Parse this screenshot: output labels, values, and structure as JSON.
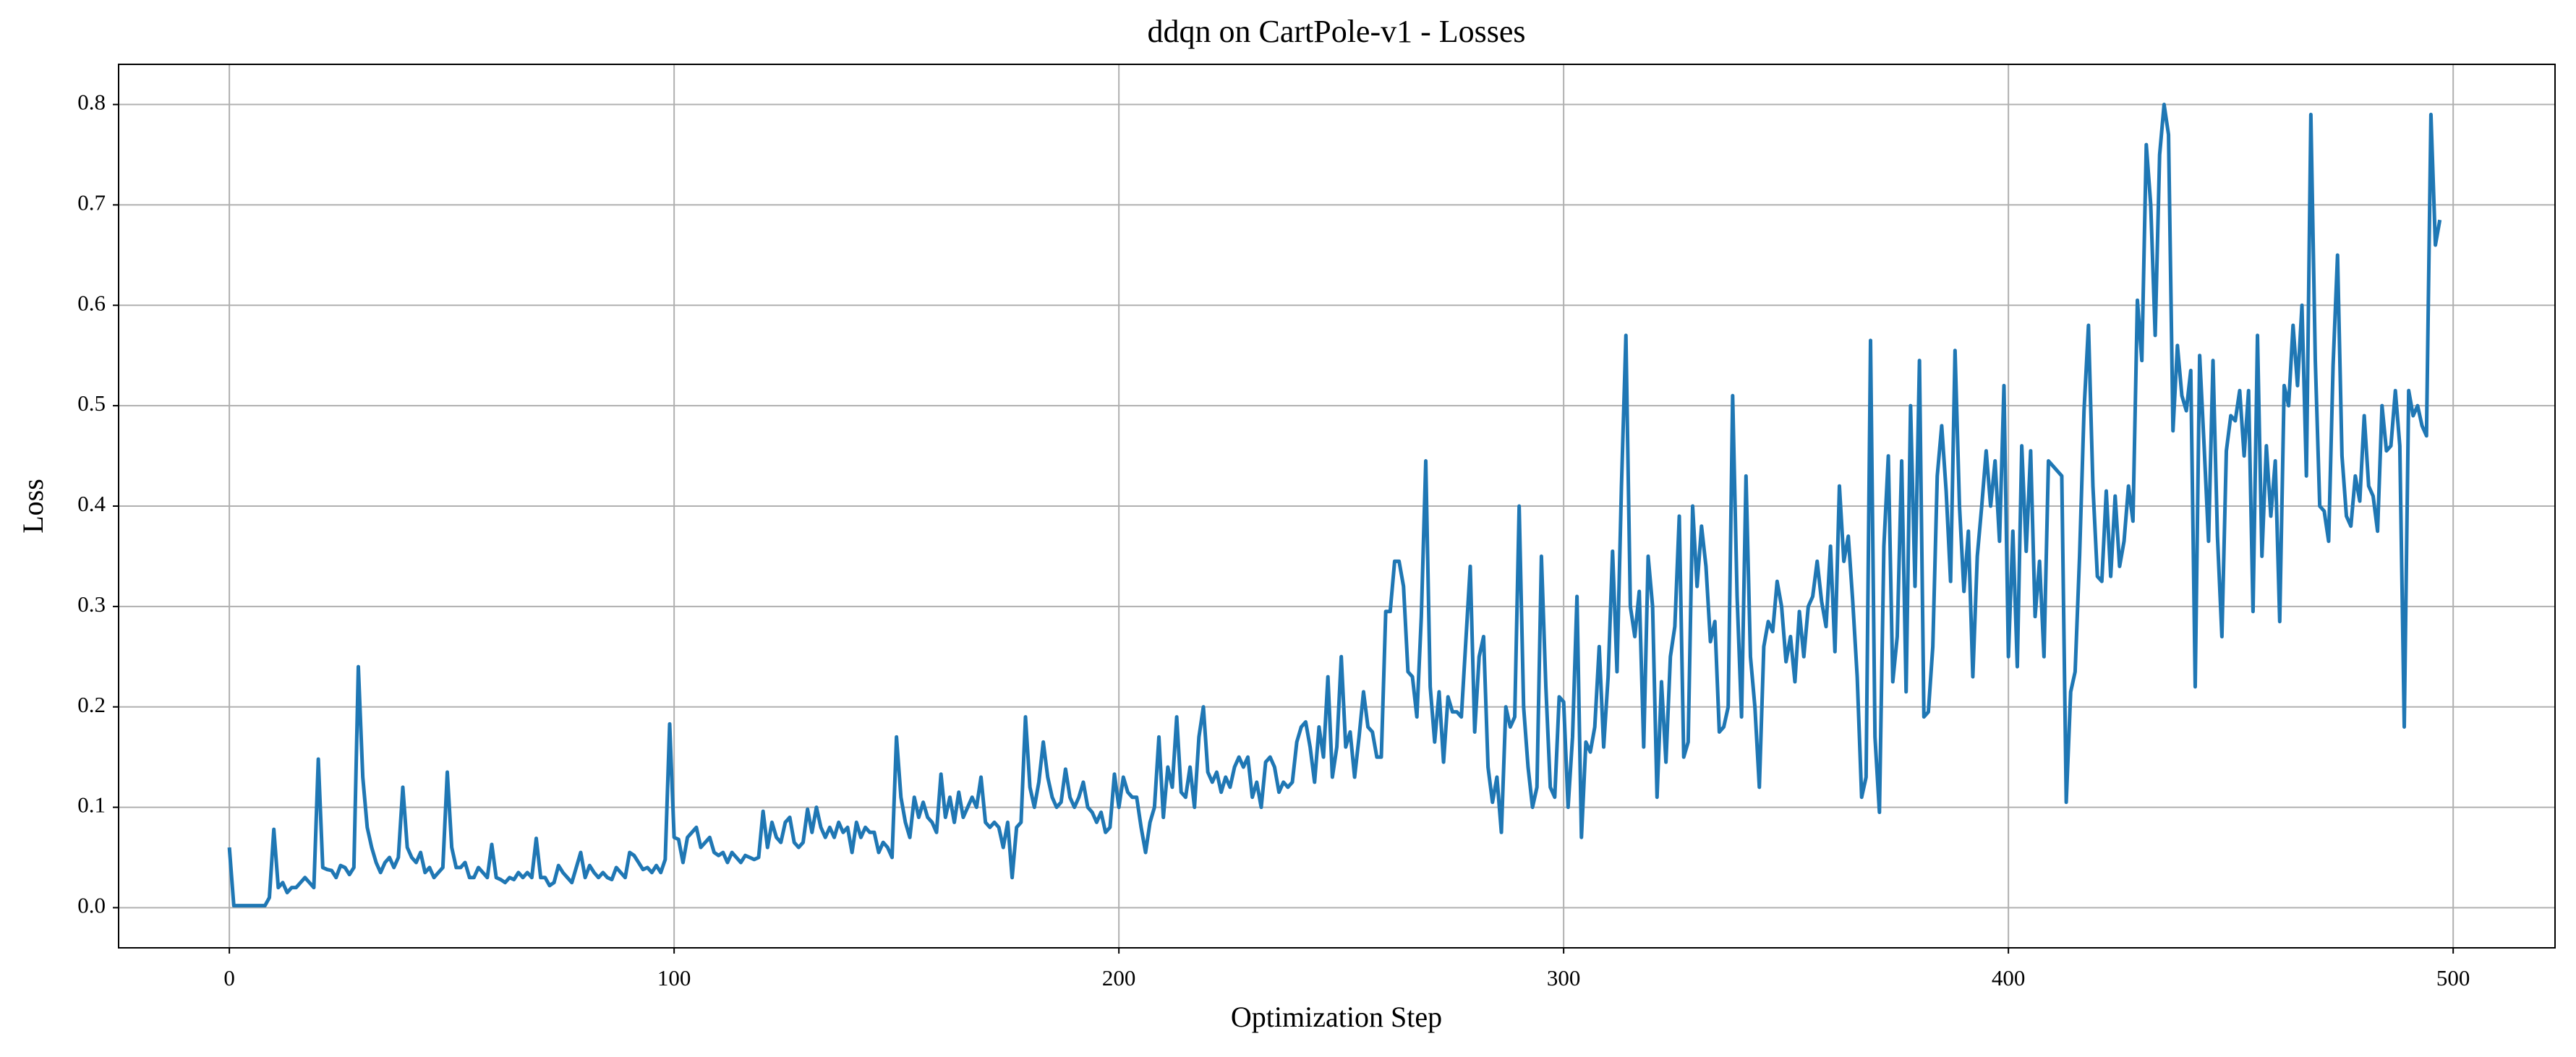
{
  "chart_data": {
    "type": "line",
    "title": "ddqn on CartPole-v1 - Losses",
    "x_label": "Optimization Step",
    "y_label": "Loss",
    "color": "#1f77b4",
    "grid": true,
    "xlim": [
      -24.9,
      522.9
    ],
    "xticks": [
      0,
      100,
      200,
      300,
      400,
      500
    ],
    "ylim": [
      -0.04,
      0.84
    ],
    "yticks": [
      {
        "value": 0,
        "label": "0.0"
      },
      0.1,
      0.2,
      0.3,
      0.4,
      0.5,
      0.6,
      0.7,
      0.8
    ],
    "x": [
      0,
      1,
      2,
      3,
      4,
      5,
      6,
      7,
      8,
      9,
      10,
      11,
      12,
      13,
      14,
      15,
      16,
      17,
      18,
      19,
      20,
      21,
      22,
      23,
      24,
      25,
      26,
      27,
      28,
      29,
      30,
      31,
      32,
      33,
      34,
      35,
      36,
      37,
      38,
      39,
      40,
      41,
      42,
      43,
      44,
      45,
      46,
      47,
      48,
      49,
      50,
      51,
      52,
      53,
      54,
      55,
      56,
      57,
      58,
      59,
      60,
      61,
      62,
      63,
      64,
      65,
      66,
      67,
      68,
      69,
      70,
      71,
      72,
      73,
      74,
      75,
      76,
      77,
      78,
      79,
      80,
      81,
      82,
      83,
      84,
      85,
      86,
      87,
      88,
      89,
      90,
      91,
      92,
      93,
      94,
      95,
      96,
      97,
      98,
      99,
      100,
      101,
      102,
      103,
      104,
      105,
      106,
      107,
      108,
      109,
      110,
      111,
      112,
      113,
      114,
      115,
      116,
      117,
      118,
      119,
      120,
      121,
      122,
      123,
      124,
      125,
      126,
      127,
      128,
      129,
      130,
      131,
      132,
      133,
      134,
      135,
      136,
      137,
      138,
      139,
      140,
      141,
      142,
      143,
      144,
      145,
      146,
      147,
      148,
      149,
      150,
      151,
      152,
      153,
      154,
      155,
      156,
      157,
      158,
      159,
      160,
      161,
      162,
      163,
      164,
      165,
      166,
      167,
      168,
      169,
      170,
      171,
      172,
      173,
      174,
      175,
      176,
      177,
      178,
      179,
      180,
      181,
      182,
      183,
      184,
      185,
      186,
      187,
      188,
      189,
      190,
      191,
      192,
      193,
      194,
      195,
      196,
      197,
      198,
      199,
      200,
      201,
      202,
      203,
      204,
      205,
      206,
      207,
      208,
      209,
      210,
      211,
      212,
      213,
      214,
      215,
      216,
      217,
      218,
      219,
      220,
      221,
      222,
      223,
      224,
      225,
      226,
      227,
      228,
      229,
      230,
      231,
      232,
      233,
      234,
      235,
      236,
      237,
      238,
      239,
      240,
      241,
      242,
      243,
      244,
      245,
      246,
      247,
      248,
      249,
      250,
      251,
      252,
      253,
      254,
      255,
      256,
      257,
      258,
      259,
      260,
      261,
      262,
      263,
      264,
      265,
      266,
      267,
      268,
      269,
      270,
      271,
      272,
      273,
      274,
      275,
      276,
      277,
      278,
      279,
      280,
      281,
      282,
      283,
      284,
      285,
      286,
      287,
      288,
      289,
      290,
      291,
      292,
      293,
      294,
      295,
      296,
      297,
      298,
      299,
      300,
      301,
      302,
      303,
      304,
      305,
      306,
      307,
      308,
      309,
      310,
      311,
      312,
      313,
      314,
      315,
      316,
      317,
      318,
      319,
      320,
      321,
      322,
      323,
      324,
      325,
      326,
      327,
      328,
      329,
      330,
      331,
      332,
      333,
      334,
      335,
      336,
      337,
      338,
      339,
      340,
      341,
      342,
      343,
      344,
      345,
      346,
      347,
      348,
      349,
      350,
      351,
      352,
      353,
      354,
      355,
      356,
      357,
      358,
      359,
      360,
      361,
      362,
      363,
      364,
      365,
      366,
      367,
      368,
      369,
      370,
      371,
      372,
      373,
      374,
      375,
      376,
      377,
      378,
      379,
      380,
      381,
      382,
      383,
      384,
      385,
      386,
      387,
      388,
      389,
      390,
      391,
      392,
      393,
      394,
      395,
      396,
      397,
      398,
      399,
      400,
      401,
      402,
      403,
      404,
      405,
      406,
      407,
      408,
      409,
      410,
      411,
      412,
      413,
      414,
      415,
      416,
      417,
      418,
      419,
      420,
      421,
      422,
      423,
      424,
      425,
      426,
      427,
      428,
      429,
      430,
      431,
      432,
      433,
      434,
      435,
      436,
      437,
      438,
      439,
      440,
      441,
      442,
      443,
      444,
      445,
      446,
      447,
      448,
      449,
      450,
      451,
      452,
      453,
      454,
      455,
      456,
      457,
      458,
      459,
      460,
      461,
      462,
      463,
      464,
      465,
      466,
      467,
      468,
      469,
      470,
      471,
      472,
      473,
      474,
      475,
      476,
      477,
      478,
      479,
      480,
      481,
      482,
      483,
      484,
      485,
      486,
      487,
      488,
      489,
      490,
      491,
      492,
      493,
      494,
      495,
      496,
      497
    ],
    "values": [
      0.06,
      0.002,
      0.002,
      0.002,
      0.002,
      0.002,
      0.002,
      0.002,
      0.002,
      0.01,
      0.078,
      0.02,
      0.025,
      0.015,
      0.02,
      0.02,
      0.025,
      0.03,
      0.025,
      0.02,
      0.148,
      0.04,
      0.038,
      0.037,
      0.03,
      0.042,
      0.04,
      0.033,
      0.04,
      0.24,
      0.13,
      0.08,
      0.06,
      0.045,
      0.035,
      0.045,
      0.05,
      0.04,
      0.05,
      0.12,
      0.06,
      0.05,
      0.045,
      0.055,
      0.035,
      0.04,
      0.03,
      0.035,
      0.04,
      0.135,
      0.06,
      0.04,
      0.04,
      0.045,
      0.03,
      0.03,
      0.04,
      0.035,
      0.03,
      0.063,
      0.03,
      0.028,
      0.025,
      0.03,
      0.028,
      0.035,
      0.03,
      0.035,
      0.03,
      0.069,
      0.03,
      0.03,
      0.022,
      0.025,
      0.042,
      0.035,
      0.03,
      0.025,
      0.04,
      0.055,
      0.03,
      0.042,
      0.035,
      0.03,
      0.035,
      0.03,
      0.028,
      0.04,
      0.035,
      0.03,
      0.055,
      0.052,
      0.045,
      0.038,
      0.04,
      0.035,
      0.042,
      0.035,
      0.048,
      0.183,
      0.07,
      0.068,
      0.045,
      0.07,
      0.075,
      0.08,
      0.06,
      0.065,
      0.07,
      0.055,
      0.052,
      0.055,
      0.045,
      0.055,
      0.05,
      0.045,
      0.052,
      0.05,
      0.048,
      0.05,
      0.096,
      0.06,
      0.085,
      0.07,
      0.065,
      0.085,
      0.09,
      0.065,
      0.06,
      0.065,
      0.098,
      0.075,
      0.1,
      0.08,
      0.07,
      0.08,
      0.07,
      0.085,
      0.075,
      0.08,
      0.055,
      0.085,
      0.07,
      0.08,
      0.075,
      0.075,
      0.055,
      0.065,
      0.06,
      0.05,
      0.17,
      0.11,
      0.085,
      0.07,
      0.11,
      0.09,
      0.105,
      0.09,
      0.085,
      0.075,
      0.133,
      0.09,
      0.11,
      0.085,
      0.115,
      0.09,
      0.1,
      0.11,
      0.1,
      0.13,
      0.085,
      0.08,
      0.085,
      0.08,
      0.06,
      0.085,
      0.03,
      0.08,
      0.085,
      0.19,
      0.12,
      0.1,
      0.125,
      0.165,
      0.13,
      0.11,
      0.1,
      0.105,
      0.138,
      0.11,
      0.1,
      0.11,
      0.125,
      0.1,
      0.095,
      0.085,
      0.095,
      0.075,
      0.08,
      0.133,
      0.1,
      0.13,
      0.115,
      0.11,
      0.11,
      0.08,
      0.055,
      0.085,
      0.1,
      0.17,
      0.09,
      0.14,
      0.12,
      0.19,
      0.115,
      0.11,
      0.14,
      0.1,
      0.17,
      0.2,
      0.135,
      0.125,
      0.135,
      0.115,
      0.13,
      0.12,
      0.14,
      0.15,
      0.14,
      0.15,
      0.11,
      0.125,
      0.1,
      0.145,
      0.15,
      0.14,
      0.115,
      0.125,
      0.12,
      0.125,
      0.165,
      0.18,
      0.185,
      0.16,
      0.125,
      0.18,
      0.15,
      0.23,
      0.13,
      0.16,
      0.25,
      0.16,
      0.175,
      0.13,
      0.17,
      0.215,
      0.18,
      0.175,
      0.15,
      0.15,
      0.295,
      0.295,
      0.345,
      0.345,
      0.32,
      0.235,
      0.23,
      0.19,
      0.29,
      0.445,
      0.22,
      0.165,
      0.215,
      0.145,
      0.21,
      0.195,
      0.195,
      0.19,
      0.265,
      0.34,
      0.175,
      0.25,
      0.27,
      0.14,
      0.105,
      0.13,
      0.075,
      0.2,
      0.18,
      0.19,
      0.4,
      0.2,
      0.14,
      0.1,
      0.12,
      0.35,
      0.22,
      0.12,
      0.11,
      0.21,
      0.205,
      0.1,
      0.17,
      0.31,
      0.07,
      0.165,
      0.155,
      0.18,
      0.26,
      0.16,
      0.23,
      0.355,
      0.235,
      0.42,
      0.57,
      0.3,
      0.27,
      0.315,
      0.16,
      0.35,
      0.3,
      0.11,
      0.225,
      0.145,
      0.25,
      0.28,
      0.39,
      0.15,
      0.165,
      0.4,
      0.32,
      0.38,
      0.34,
      0.265,
      0.285,
      0.175,
      0.18,
      0.2,
      0.51,
      0.31,
      0.19,
      0.43,
      0.25,
      0.2,
      0.12,
      0.26,
      0.285,
      0.275,
      0.325,
      0.3,
      0.245,
      0.27,
      0.225,
      0.295,
      0.25,
      0.3,
      0.31,
      0.345,
      0.305,
      0.28,
      0.36,
      0.255,
      0.42,
      0.345,
      0.37,
      0.305,
      0.23,
      0.11,
      0.13,
      0.565,
      0.17,
      0.095,
      0.36,
      0.45,
      0.225,
      0.27,
      0.445,
      0.215,
      0.5,
      0.32,
      0.545,
      0.19,
      0.195,
      0.26,
      0.43,
      0.48,
      0.415,
      0.325,
      0.555,
      0.4,
      0.315,
      0.375,
      0.23,
      0.35,
      0.4,
      0.455,
      0.4,
      0.445,
      0.365,
      0.52,
      0.25,
      0.375,
      0.24,
      0.46,
      0.355,
      0.455,
      0.29,
      0.345,
      0.25,
      0.445,
      0.44,
      0.435,
      0.43,
      0.105,
      0.215,
      0.235,
      0.35,
      0.495,
      0.58,
      0.42,
      0.33,
      0.325,
      0.415,
      0.33,
      0.41,
      0.34,
      0.365,
      0.42,
      0.385,
      0.605,
      0.545,
      0.76,
      0.7,
      0.57,
      0.75,
      0.8,
      0.77,
      0.475,
      0.56,
      0.51,
      0.495,
      0.535,
      0.22,
      0.55,
      0.46,
      0.365,
      0.545,
      0.37,
      0.27,
      0.455,
      0.49,
      0.485,
      0.515,
      0.45,
      0.515,
      0.295,
      0.57,
      0.35,
      0.46,
      0.39,
      0.445,
      0.285,
      0.52,
      0.5,
      0.58,
      0.52,
      0.6,
      0.43,
      0.79,
      0.545,
      0.4,
      0.395,
      0.365,
      0.54,
      0.65,
      0.45,
      0.39,
      0.38,
      0.43,
      0.405,
      0.49,
      0.42,
      0.41,
      0.375,
      0.5,
      0.455,
      0.46,
      0.515,
      0.46,
      0.18,
      0.515,
      0.49,
      0.5,
      0.48,
      0.47,
      0.79,
      0.66,
      0.685
    ]
  }
}
